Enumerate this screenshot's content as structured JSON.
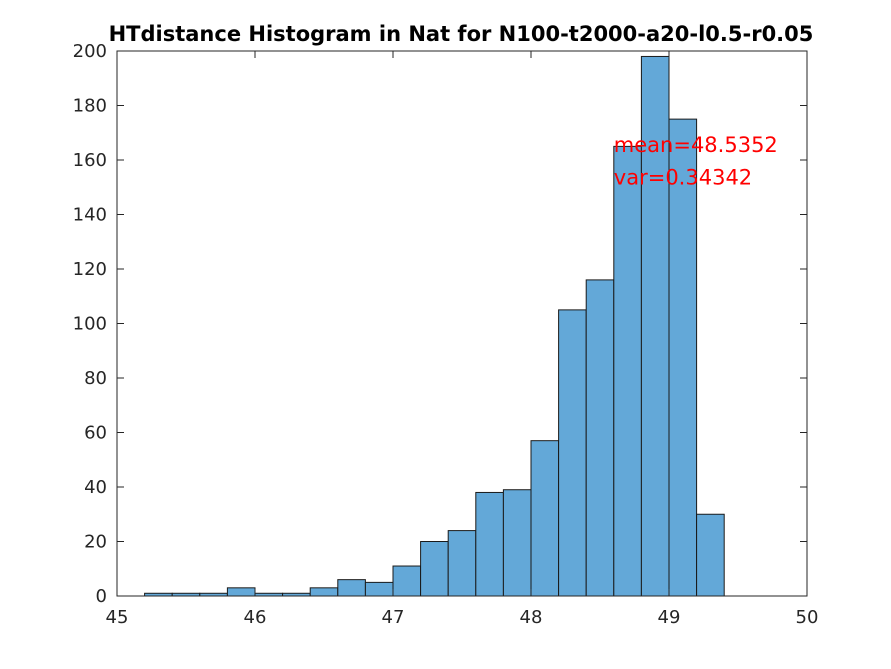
{
  "chart_data": {
    "type": "bar",
    "title": "HTdistance Histogram in Nat for N100-t2000-a20-l0.5-r0.05",
    "xlabel": "",
    "ylabel": "",
    "xlim": [
      45,
      50
    ],
    "ylim": [
      0,
      200
    ],
    "x_ticks": [
      45,
      46,
      47,
      48,
      49,
      50
    ],
    "y_ticks": [
      0,
      20,
      40,
      60,
      80,
      100,
      120,
      140,
      160,
      180,
      200
    ],
    "bin_width": 0.2,
    "bin_starts": [
      45.2,
      45.4,
      45.6,
      45.8,
      46.0,
      46.2,
      46.4,
      46.6,
      46.8,
      47.0,
      47.2,
      47.4,
      47.6,
      47.8,
      48.0,
      48.2,
      48.4,
      48.6,
      48.8,
      49.0,
      49.2
    ],
    "values": [
      1,
      1,
      1,
      3,
      1,
      1,
      3,
      6,
      5,
      11,
      20,
      24,
      38,
      39,
      57,
      105,
      116,
      165,
      198,
      175,
      30
    ],
    "bar_color": "#63a8d8",
    "grid": false,
    "annotations": [
      {
        "text": "mean=48.5352",
        "x": 48.6,
        "y": 163
      },
      {
        "text": "var=0.34342",
        "x": 48.6,
        "y": 151
      }
    ]
  }
}
